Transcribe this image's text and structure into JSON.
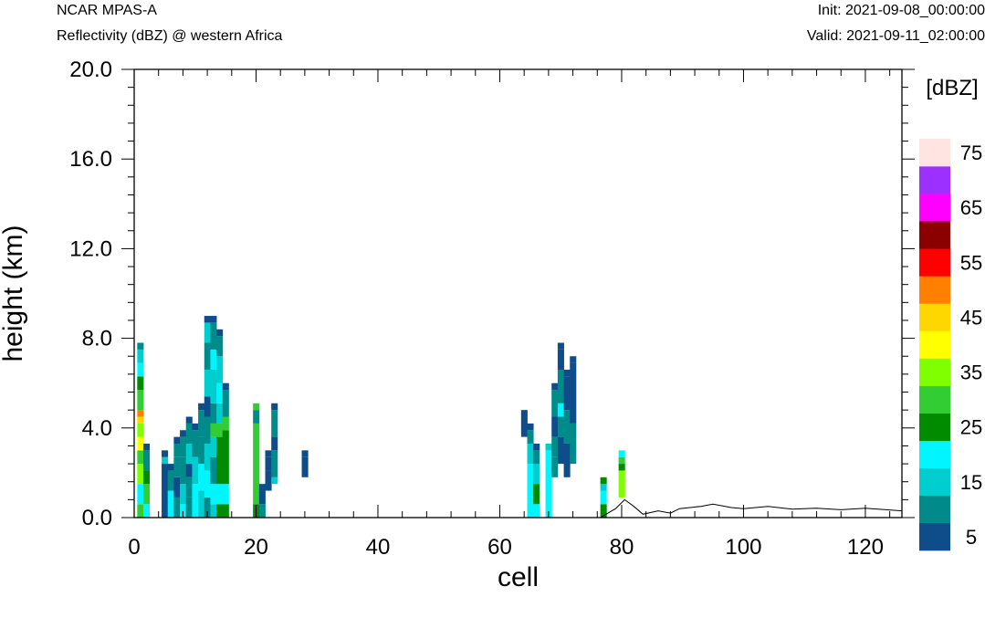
{
  "header": {
    "model": "NCAR MPAS-A",
    "field": "Reflectivity (dBZ) @ western Africa",
    "init": "Init: 2021-09-08_00:00:00",
    "valid": "Valid: 2021-09-11_02:00:00"
  },
  "chart_data": {
    "type": "heatmap",
    "xlabel": "cell",
    "ylabel": "height (km)",
    "xlim": [
      0,
      126
    ],
    "ylim": [
      0,
      20
    ],
    "xticks": [
      "0",
      "20",
      "40",
      "60",
      "80",
      "100",
      "120"
    ],
    "yticks": [
      "0.0",
      "4.0",
      "8.0",
      "12.0",
      "16.0",
      "20.0"
    ],
    "grid": false,
    "legend": "right",
    "colorbar": {
      "unit": "[dBZ]",
      "levels": [
        5,
        10,
        15,
        20,
        25,
        30,
        35,
        40,
        45,
        50,
        55,
        60,
        65,
        70,
        75
      ],
      "tick_labels": [
        "5",
        "15",
        "25",
        "35",
        "45",
        "55",
        "65",
        "75"
      ],
      "colors": [
        "#0f4c8a",
        "#008b8b",
        "#00cdcd",
        "#00f5ff",
        "#008b00",
        "#32cd32",
        "#7fff00",
        "#ffff00",
        "#ffd700",
        "#ff7f00",
        "#ff0000",
        "#8b0000",
        "#ff00ff",
        "#9b30ff",
        "#ffe4e1"
      ]
    },
    "cell_height_km": 0.3,
    "cells": [
      [
        1,
        [
          [
            0,
            5
          ],
          [
            0.6,
            3
          ],
          [
            1.5,
            6
          ],
          [
            2.4,
            5
          ],
          [
            3.0,
            7
          ],
          [
            3.6,
            6
          ],
          [
            4.2,
            8
          ],
          [
            4.5,
            9
          ],
          [
            4.8,
            5
          ],
          [
            5.7,
            4
          ],
          [
            6.3,
            3
          ],
          [
            6.9,
            2
          ],
          [
            7.5,
            1
          ]
        ]
      ],
      [
        2,
        [
          [
            0,
            3
          ],
          [
            0.6,
            5
          ],
          [
            1.5,
            4
          ],
          [
            2.1,
            1
          ],
          [
            3.0,
            0
          ]
        ]
      ],
      [
        5,
        [
          [
            0,
            0
          ],
          [
            2.4,
            2
          ],
          [
            2.7,
            0
          ]
        ]
      ],
      [
        6,
        [
          [
            0,
            3
          ],
          [
            1.2,
            1
          ],
          [
            2.1,
            0
          ]
        ]
      ],
      [
        7,
        [
          [
            0,
            1
          ],
          [
            0.9,
            0
          ],
          [
            1.8,
            1
          ],
          [
            2.7,
            1
          ],
          [
            3.3,
            0
          ]
        ]
      ],
      [
        8,
        [
          [
            0,
            3
          ],
          [
            0.6,
            2
          ],
          [
            1.5,
            1
          ],
          [
            2.7,
            1
          ],
          [
            3.6,
            0
          ]
        ]
      ],
      [
        9,
        [
          [
            0,
            1
          ],
          [
            0.9,
            1
          ],
          [
            1.8,
            0
          ],
          [
            2.4,
            2
          ],
          [
            3.3,
            1
          ],
          [
            4.2,
            0
          ]
        ]
      ],
      [
        10,
        [
          [
            0,
            3
          ],
          [
            1.5,
            2
          ],
          [
            2.7,
            1
          ],
          [
            3.9,
            0
          ]
        ]
      ],
      [
        11,
        [
          [
            0,
            2
          ],
          [
            1.2,
            3
          ],
          [
            2.4,
            1
          ],
          [
            3.6,
            1
          ],
          [
            4.8,
            0
          ]
        ]
      ],
      [
        12,
        [
          [
            0,
            1
          ],
          [
            0.9,
            3
          ],
          [
            2.1,
            2
          ],
          [
            3.3,
            1
          ],
          [
            4.5,
            0
          ],
          [
            5.4,
            2
          ],
          [
            6.6,
            1
          ],
          [
            7.8,
            2
          ],
          [
            8.7,
            0
          ]
        ]
      ],
      [
        13,
        [
          [
            0,
            2
          ],
          [
            0.6,
            3
          ],
          [
            1.5,
            1
          ],
          [
            2.7,
            2
          ],
          [
            3.6,
            5
          ],
          [
            4.2,
            1
          ],
          [
            5.1,
            2
          ],
          [
            6.6,
            3
          ],
          [
            7.5,
            1
          ],
          [
            8.7,
            0
          ]
        ]
      ],
      [
        14,
        [
          [
            0,
            4
          ],
          [
            0.6,
            3
          ],
          [
            1.5,
            4
          ],
          [
            3.6,
            5
          ],
          [
            4.2,
            2
          ],
          [
            5.1,
            3
          ],
          [
            6.0,
            2
          ],
          [
            7.2,
            1
          ],
          [
            8.1,
            0
          ]
        ]
      ],
      [
        15,
        [
          [
            0,
            4
          ],
          [
            0.6,
            3
          ],
          [
            1.5,
            4
          ],
          [
            3.9,
            5
          ],
          [
            4.5,
            1
          ],
          [
            5.7,
            0
          ]
        ]
      ],
      [
        20,
        [
          [
            0,
            4
          ],
          [
            0.6,
            5
          ],
          [
            4.2,
            1
          ],
          [
            4.8,
            5
          ]
        ]
      ],
      [
        21,
        [
          [
            0,
            1
          ],
          [
            0.6,
            0
          ],
          [
            1.2,
            0
          ]
        ]
      ],
      [
        22,
        [
          [
            1.2,
            0
          ],
          [
            2.1,
            0
          ],
          [
            2.7,
            0
          ]
        ]
      ],
      [
        23,
        [
          [
            1.5,
            2
          ],
          [
            1.8,
            1
          ],
          [
            3.0,
            0
          ],
          [
            3.6,
            1
          ],
          [
            4.8,
            0
          ]
        ]
      ],
      [
        28,
        [
          [
            1.8,
            0
          ],
          [
            2.7,
            0
          ]
        ]
      ],
      [
        64,
        [
          [
            3.6,
            0
          ],
          [
            4.5,
            0
          ]
        ]
      ],
      [
        65,
        [
          [
            0,
            3
          ],
          [
            0.9,
            3
          ],
          [
            2.4,
            2
          ],
          [
            3.3,
            1
          ],
          [
            3.9,
            0
          ]
        ]
      ],
      [
        66,
        [
          [
            0,
            3
          ],
          [
            0.6,
            4
          ],
          [
            1.5,
            2
          ],
          [
            2.4,
            1
          ],
          [
            3.0,
            0
          ]
        ]
      ],
      [
        68,
        [
          [
            0,
            3
          ],
          [
            3.0,
            2
          ]
        ]
      ],
      [
        69,
        [
          [
            1.8,
            1
          ],
          [
            2.7,
            1
          ],
          [
            3.6,
            0
          ],
          [
            4.5,
            1
          ],
          [
            5.7,
            0
          ]
        ]
      ],
      [
        70,
        [
          [
            2.4,
            0
          ],
          [
            3.6,
            1
          ],
          [
            4.5,
            3
          ],
          [
            5.1,
            1
          ],
          [
            6.6,
            0
          ],
          [
            7.5,
            0
          ]
        ]
      ],
      [
        71,
        [
          [
            1.8,
            0
          ],
          [
            3.3,
            1
          ],
          [
            4.8,
            0
          ],
          [
            6.3,
            0
          ]
        ]
      ],
      [
        72,
        [
          [
            2.4,
            1
          ],
          [
            4.2,
            0
          ],
          [
            6.9,
            0
          ]
        ]
      ],
      [
        77,
        [
          [
            0,
            4
          ],
          [
            0.6,
            3
          ],
          [
            1.2,
            2
          ],
          [
            1.5,
            4
          ]
        ]
      ],
      [
        80,
        [
          [
            0.9,
            6
          ],
          [
            2.1,
            4
          ],
          [
            2.4,
            5
          ],
          [
            2.7,
            3
          ]
        ]
      ]
    ],
    "terrain": [
      [
        0,
        0
      ],
      [
        76.5,
        0
      ],
      [
        79,
        0.4
      ],
      [
        80.5,
        0.8
      ],
      [
        82,
        0.5
      ],
      [
        83.5,
        0.15
      ],
      [
        86,
        0.3
      ],
      [
        88,
        0.2
      ],
      [
        89.5,
        0.4
      ],
      [
        93,
        0.5
      ],
      [
        95,
        0.6
      ],
      [
        98,
        0.45
      ],
      [
        100,
        0.4
      ],
      [
        104,
        0.5
      ],
      [
        108,
        0.38
      ],
      [
        112,
        0.42
      ],
      [
        116,
        0.35
      ],
      [
        120,
        0.42
      ],
      [
        126,
        0.3
      ]
    ]
  }
}
